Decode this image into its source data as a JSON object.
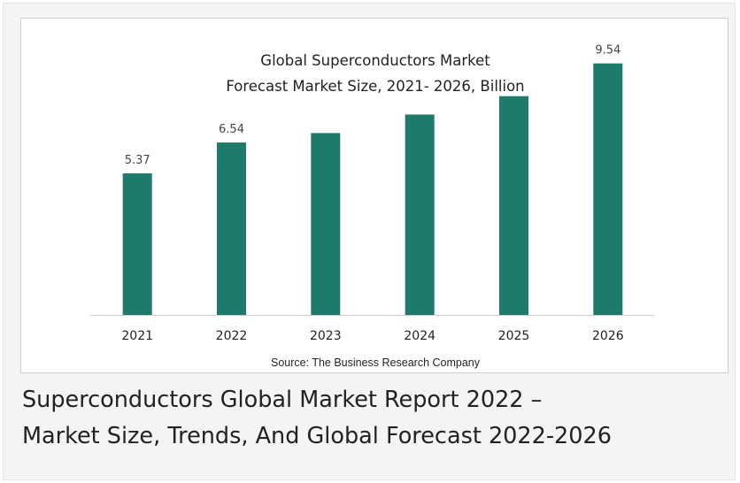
{
  "chart_data": {
    "type": "bar",
    "title": [
      "Global Superconductors  Market",
      "Forecast Market Size, 2021- 2026, Billion"
    ],
    "categories": [
      "2021",
      "2022",
      "2023",
      "2024",
      "2025",
      "2026"
    ],
    "values": [
      5.37,
      6.54,
      6.9,
      7.6,
      8.3,
      9.54
    ],
    "data_labels": [
      "5.37",
      "6.54",
      "",
      "",
      "",
      "9.54"
    ],
    "xlabel": "",
    "ylabel": "",
    "ylim": [
      0,
      10
    ],
    "grid": false,
    "legend": "none",
    "bar_color": "#1e7a6a",
    "source": "Source: The Business Research Company"
  },
  "caption": {
    "line1": "Superconductors Global Market Report 2022 –",
    "line2": "Market Size, Trends, And Global Forecast 2022-2026"
  }
}
